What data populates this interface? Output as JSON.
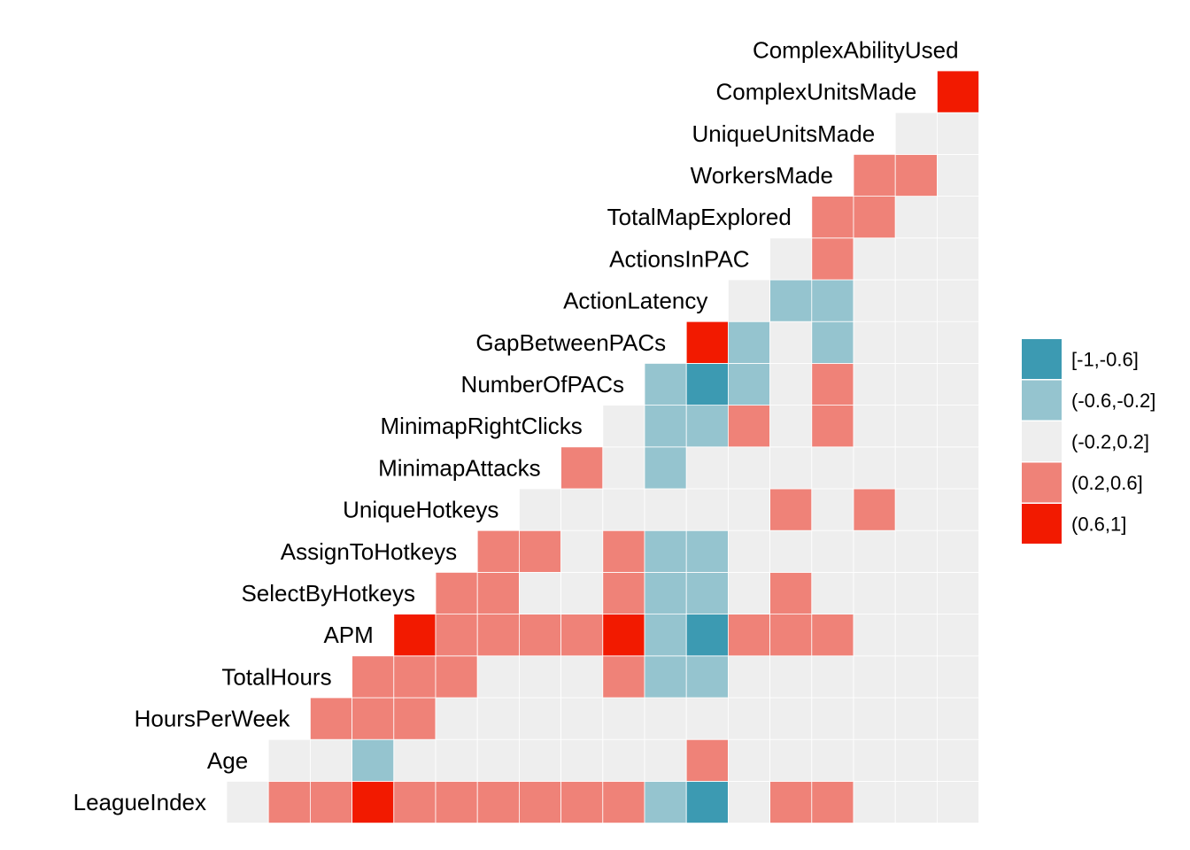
{
  "chart_data": {
    "type": "heatmap",
    "title": "",
    "variables": [
      "LeagueIndex",
      "Age",
      "HoursPerWeek",
      "TotalHours",
      "APM",
      "SelectByHotkeys",
      "AssignToHotkeys",
      "UniqueHotkeys",
      "MinimapAttacks",
      "MinimapRightClicks",
      "NumberOfPACs",
      "GapBetweenPACs",
      "ActionLatency",
      "ActionsInPAC",
      "TotalMapExplored",
      "WorkersMade",
      "UniqueUnitsMade",
      "ComplexUnitsMade",
      "ComplexAbilityUsed"
    ],
    "bins": [
      {
        "label": "[-1,-0.6]",
        "color": "#3C9AB2"
      },
      {
        "label": "(-0.6,-0.2]",
        "color": "#95C4CF"
      },
      {
        "label": "(-0.2,0.2]",
        "color": "#EEEEEE"
      },
      {
        "label": "(0.2,0.6]",
        "color": "#EF8278"
      },
      {
        "label": "(0.6,1]",
        "color": "#F21A00"
      }
    ],
    "matrix": [
      [
        2,
        3,
        3,
        4,
        3,
        3,
        3,
        3,
        3,
        3,
        1,
        0,
        2,
        3,
        3,
        2,
        2,
        2
      ],
      [
        2,
        2,
        1,
        2,
        2,
        2,
        2,
        2,
        2,
        2,
        3,
        2,
        2,
        2,
        2,
        2,
        2
      ],
      [
        3,
        3,
        3,
        2,
        2,
        2,
        2,
        2,
        2,
        2,
        2,
        2,
        2,
        2,
        2,
        2
      ],
      [
        3,
        3,
        3,
        2,
        2,
        2,
        3,
        1,
        1,
        2,
        2,
        2,
        2,
        2,
        2
      ],
      [
        4,
        3,
        3,
        3,
        3,
        4,
        1,
        0,
        3,
        3,
        3,
        2,
        2,
        2
      ],
      [
        3,
        3,
        2,
        2,
        3,
        1,
        1,
        2,
        3,
        2,
        2,
        2,
        2
      ],
      [
        3,
        3,
        2,
        3,
        1,
        1,
        2,
        2,
        2,
        2,
        2,
        2
      ],
      [
        2,
        2,
        2,
        2,
        2,
        2,
        3,
        2,
        3,
        2,
        2
      ],
      [
        3,
        2,
        1,
        2,
        2,
        2,
        2,
        2,
        2,
        2
      ],
      [
        2,
        1,
        1,
        3,
        2,
        3,
        2,
        2,
        2
      ],
      [
        1,
        0,
        1,
        2,
        3,
        2,
        2,
        2
      ],
      [
        4,
        1,
        2,
        1,
        2,
        2,
        2
      ],
      [
        2,
        1,
        1,
        2,
        2,
        2
      ],
      [
        2,
        3,
        2,
        2,
        2
      ],
      [
        3,
        3,
        2,
        2
      ],
      [
        3,
        3,
        2
      ],
      [
        2,
        2
      ],
      [
        4
      ]
    ]
  }
}
